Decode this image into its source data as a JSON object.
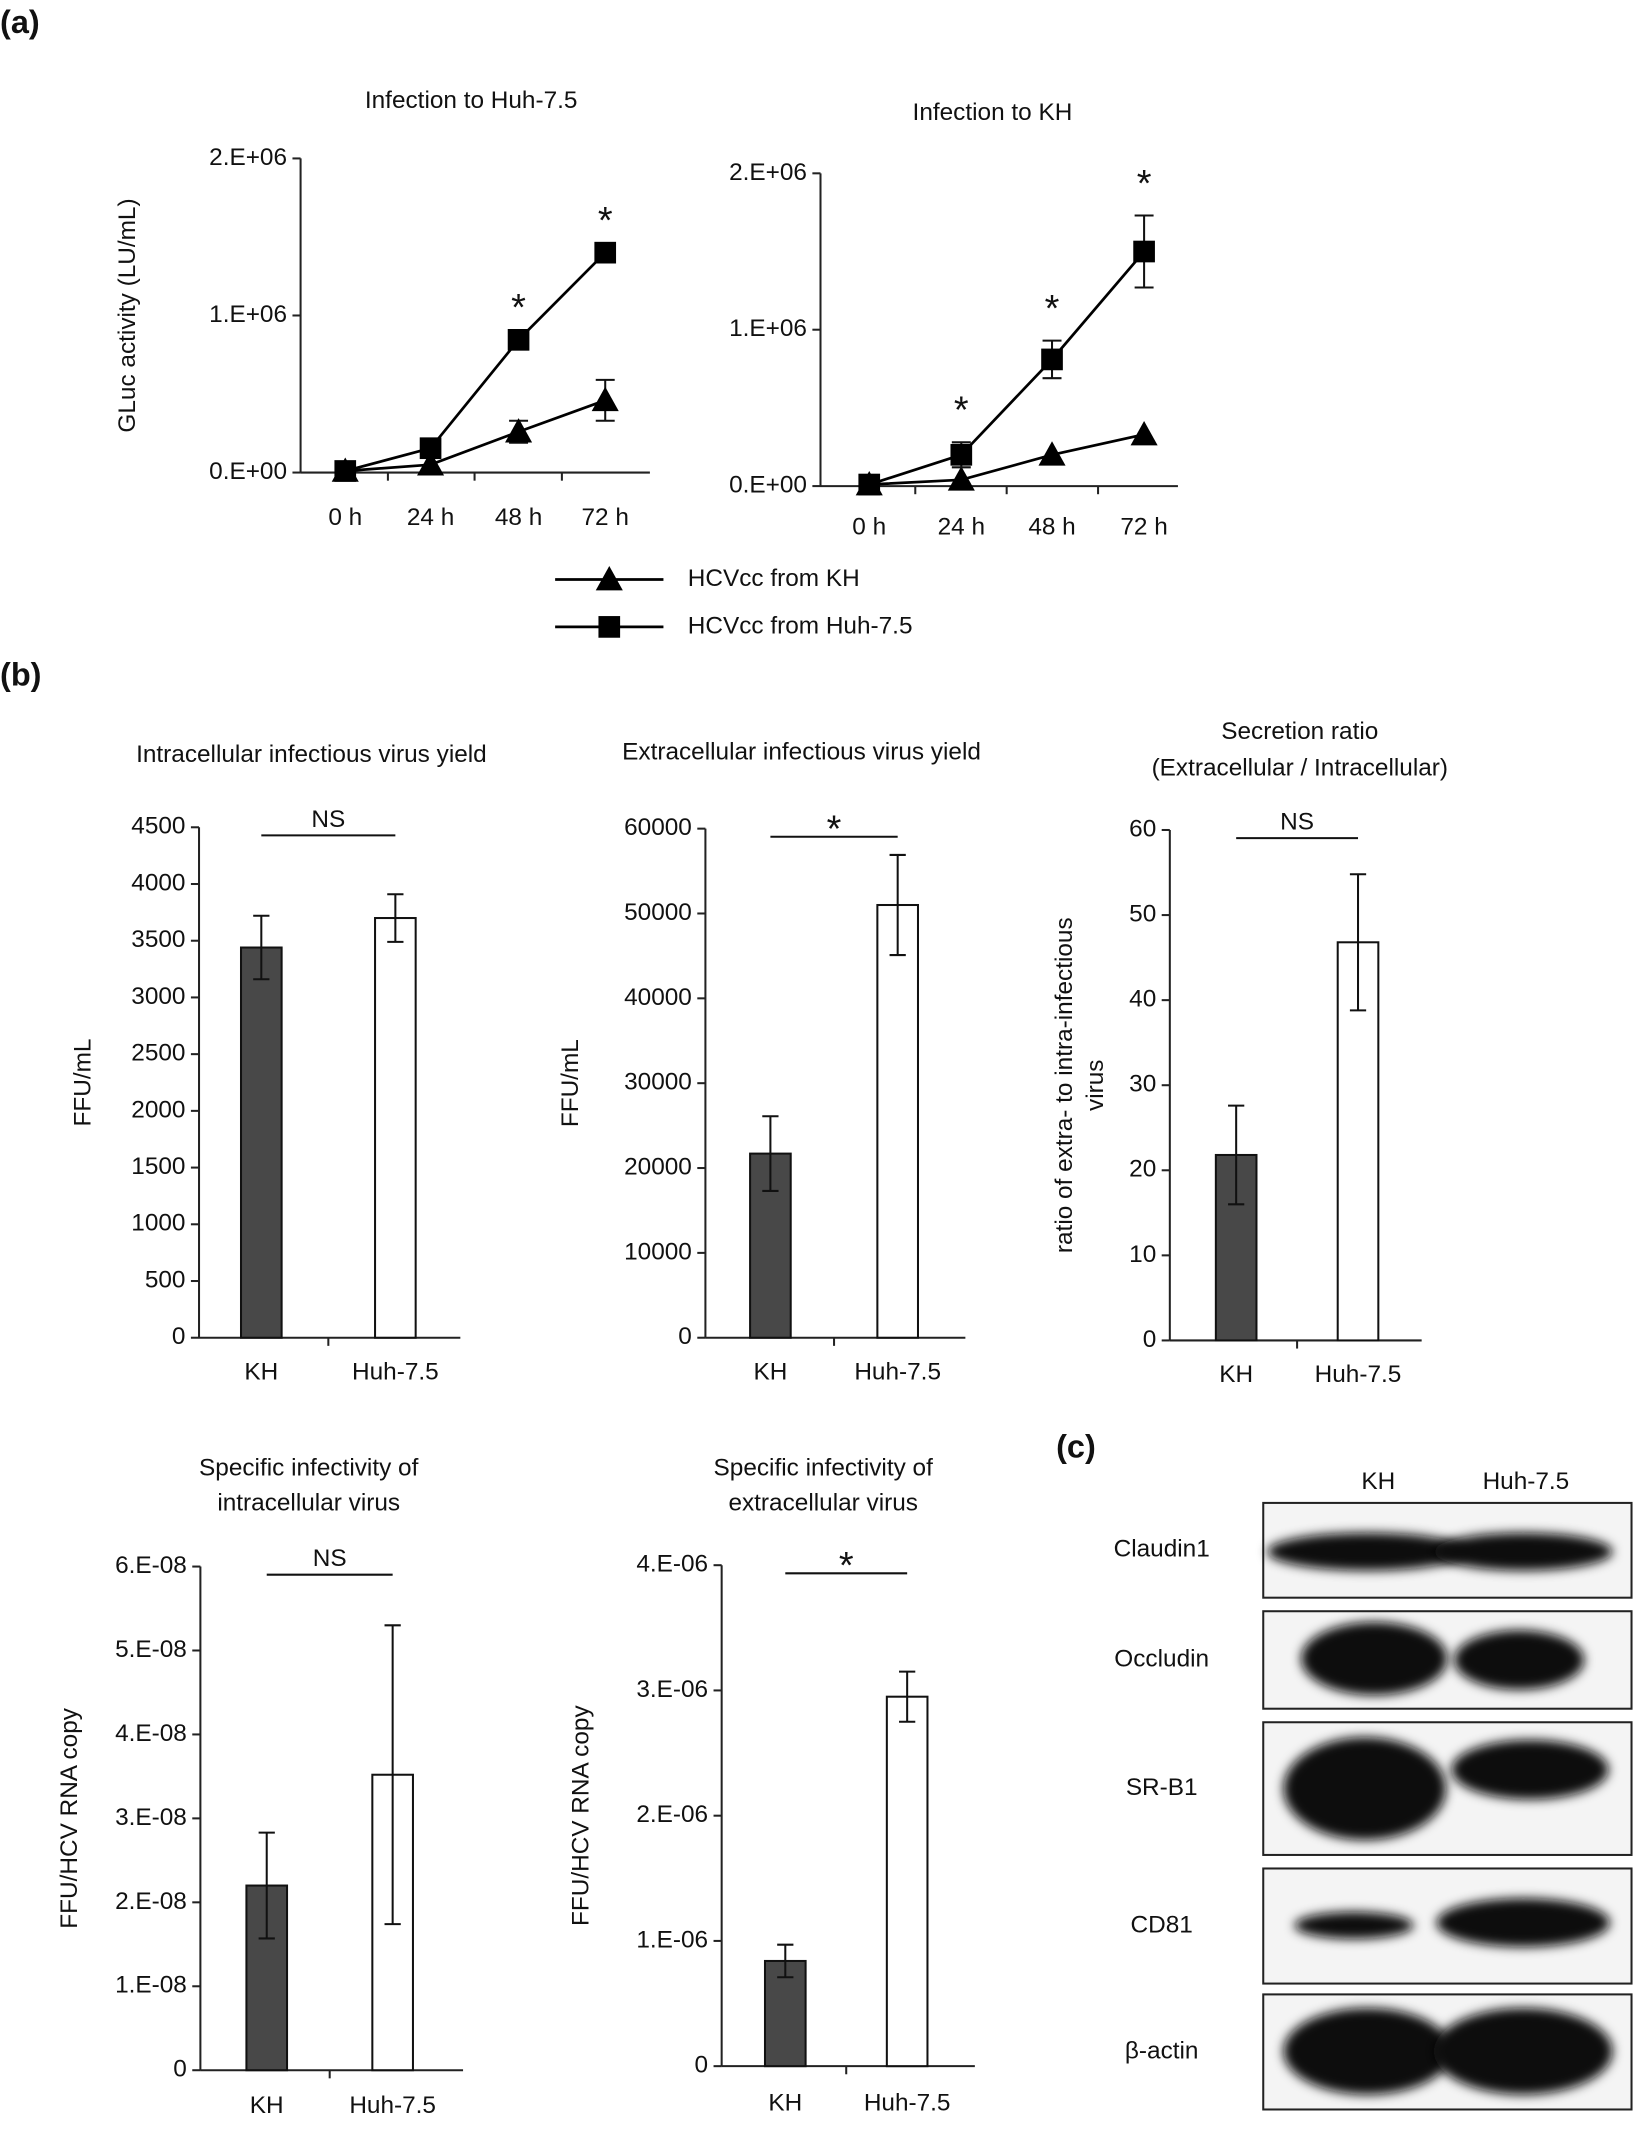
{
  "panel_labels": [
    "(a)",
    "(b)"
  ],
  "chart_data": [
    {
      "type": "line",
      "title": "Infection to Huh-7.5",
      "ylabel": "GLuc activity (LU/mL)",
      "categories": [
        "0 h",
        "24 h",
        "48 h",
        "72 h"
      ],
      "ylim": [
        0,
        2000000
      ],
      "yticks": [
        {
          "value": 0,
          "label": "0.E+00"
        },
        {
          "value": 1000000,
          "label": "1.E+06"
        },
        {
          "value": 2000000,
          "label": "2.E+06"
        }
      ],
      "series": [
        {
          "name": "HCVcc from KH",
          "marker": "triangle",
          "color": "#000000",
          "values": [
            10000,
            50000,
            260000,
            460000
          ],
          "errors": [
            null,
            null,
            70000,
            130000
          ]
        },
        {
          "name": "HCVcc from Huh-7.5",
          "marker": "square",
          "color": "#000000",
          "values": [
            10000,
            155000,
            845000,
            1400000
          ],
          "errors": [
            null,
            null,
            null,
            null
          ]
        }
      ],
      "annotations": [
        {
          "text": "*",
          "at": "48 h"
        },
        {
          "text": "*",
          "at": "72 h"
        }
      ]
    },
    {
      "type": "line",
      "title": "Infection to KH",
      "categories": [
        "0 h",
        "24 h",
        "48 h",
        "72 h"
      ],
      "ylim": [
        0,
        2000000
      ],
      "yticks": [
        {
          "value": 0,
          "label": "0.E+00"
        },
        {
          "value": 1000000,
          "label": "1.E+06"
        },
        {
          "value": 2000000,
          "label": "2.E+06"
        }
      ],
      "series": [
        {
          "marker": "triangle",
          "color": "#000000",
          "values": [
            10000,
            40000,
            200000,
            330000
          ],
          "errors": [
            null,
            null,
            null,
            null
          ]
        },
        {
          "marker": "square",
          "color": "#000000",
          "values": [
            10000,
            200000,
            810000,
            1500000
          ],
          "errors": [
            null,
            80000,
            120000,
            230000
          ]
        }
      ],
      "annotations": [
        {
          "text": "*",
          "at": "24 h"
        },
        {
          "text": "*",
          "at": "48 h"
        },
        {
          "text": "*",
          "at": "72 h"
        }
      ]
    },
    {
      "type": "bar",
      "title": "Intracellular infectious virus yield",
      "ylabel": "FFU/mL",
      "categories": [
        "KH",
        "Huh-7.5"
      ],
      "values": [
        3440,
        3700
      ],
      "errors": [
        280,
        210
      ],
      "colors": [
        "#484848",
        "#ffffff"
      ],
      "ylim": [
        0,
        4500
      ],
      "yticks": [
        0,
        500,
        1000,
        1500,
        2000,
        2500,
        3000,
        3500,
        4000,
        4500
      ],
      "significance": "NS"
    },
    {
      "type": "bar",
      "title": "Extracellular infectious virus yield",
      "ylabel": "FFU/mL",
      "categories": [
        "KH",
        "Huh-7.5"
      ],
      "values": [
        21700,
        51000
      ],
      "errors": [
        4400,
        5900
      ],
      "colors": [
        "#484848",
        "#ffffff"
      ],
      "ylim": [
        0,
        60000
      ],
      "yticks": [
        0,
        10000,
        20000,
        30000,
        40000,
        50000,
        60000
      ],
      "significance": "*"
    },
    {
      "type": "bar",
      "title": [
        "Secretion ratio",
        "(Extracellular / Intracellular)"
      ],
      "ylabel": [
        "ratio of extra- to intra-infectious",
        "virus"
      ],
      "categories": [
        "KH",
        "Huh-7.5"
      ],
      "values": [
        21.8,
        46.8
      ],
      "errors": [
        5.8,
        8
      ],
      "colors": [
        "#484848",
        "#ffffff"
      ],
      "ylim": [
        0,
        60
      ],
      "yticks": [
        0,
        10,
        20,
        30,
        40,
        50,
        60
      ],
      "significance": "NS"
    },
    {
      "type": "bar",
      "title": [
        "Specific infectivity of",
        "intracellular virus"
      ],
      "ylabel": "FFU/HCV RNA copy",
      "categories": [
        "KH",
        "Huh-7.5"
      ],
      "values": [
        2.2e-08,
        3.52e-08
      ],
      "errors": [
        6.3e-09,
        1.78e-08
      ],
      "colors": [
        "#484848",
        "#ffffff"
      ],
      "ylim": [
        0,
        6e-08
      ],
      "yticks": [
        0,
        {
          "value": 1e-08,
          "label": "1.E-08"
        },
        {
          "value": 2e-08,
          "label": "2.E-08"
        },
        {
          "value": 3e-08,
          "label": "3.E-08"
        },
        {
          "value": 4e-08,
          "label": "4.E-08"
        },
        {
          "value": 5e-08,
          "label": "5.E-08"
        },
        {
          "value": 6e-08,
          "label": "6.E-08"
        }
      ],
      "significance": "NS"
    },
    {
      "type": "bar",
      "title": [
        "Specific infectivity of",
        "extracellular virus"
      ],
      "ylabel": "FFU/HCV RNA copy",
      "categories": [
        "KH",
        "Huh-7.5"
      ],
      "values": [
        8.4e-07,
        2.95e-06
      ],
      "errors": [
        1.3e-07,
        2e-07
      ],
      "colors": [
        "#484848",
        "#ffffff"
      ],
      "ylim": [
        0,
        4e-06
      ],
      "yticks": [
        0,
        {
          "value": 1e-06,
          "label": "1.E-06"
        },
        {
          "value": 2e-06,
          "label": "2.E-06"
        },
        {
          "value": 3e-06,
          "label": "3.E-06"
        },
        {
          "value": 4e-06,
          "label": "4.E-06"
        }
      ],
      "significance": "*"
    }
  ],
  "blot": {
    "label": "(c)",
    "columns": [
      "KH",
      "Huh-7.5"
    ],
    "rows": [
      "Claudin1",
      "Occludin",
      "SR-B1",
      "CD81",
      "β-actin"
    ]
  }
}
